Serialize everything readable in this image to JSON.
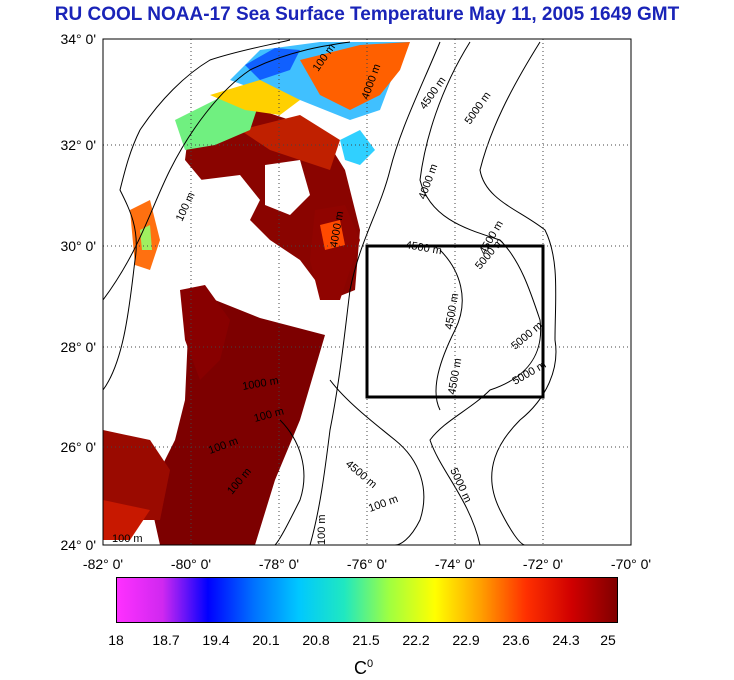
{
  "title": "RU COOL  NOAA-17 Sea Surface Temperature May 11, 2005 1649 GMT",
  "map": {
    "lat_ticks": [
      "34° 0'",
      "32° 0'",
      "30° 0'",
      "28° 0'",
      "26° 0'",
      "24° 0'"
    ],
    "lon_ticks": [
      "-82° 0'",
      "-80° 0'",
      "-78° 0'",
      "-76° 0'",
      "-74° 0'",
      "-72° 0'",
      "-70° 0'"
    ],
    "lat_range": [
      24,
      34
    ],
    "lon_range": [
      -82,
      -70
    ],
    "study_box": {
      "lon": [
        -76,
        -72
      ],
      "lat": [
        27,
        30
      ]
    },
    "contour_labels": [
      "100 m",
      "100 m",
      "4000 m",
      "4500 m",
      "5000 m",
      "4000 m",
      "4500 m",
      "5000 m",
      "4500 m",
      "4500 m",
      "5000 m",
      "5000 m",
      "4500 m",
      "1000 m",
      "100 m",
      "100 m",
      "100 m",
      "100 m",
      "4500 m",
      "5000 m",
      "100 m",
      "100 m",
      "4000 m"
    ]
  },
  "colorbar": {
    "ticks": [
      "18",
      "18.7",
      "19.4",
      "20.1",
      "20.8",
      "21.5",
      "22.2",
      "22.9",
      "23.6",
      "24.3",
      "25"
    ],
    "unit": "C",
    "unit_sup": "0",
    "colors": [
      "#ff30ff",
      "#d028f0",
      "#0000ff",
      "#0070ff",
      "#00c8ff",
      "#20e8c0",
      "#a0ff40",
      "#ffff00",
      "#ffa000",
      "#ff3000",
      "#d00000",
      "#800000"
    ]
  }
}
